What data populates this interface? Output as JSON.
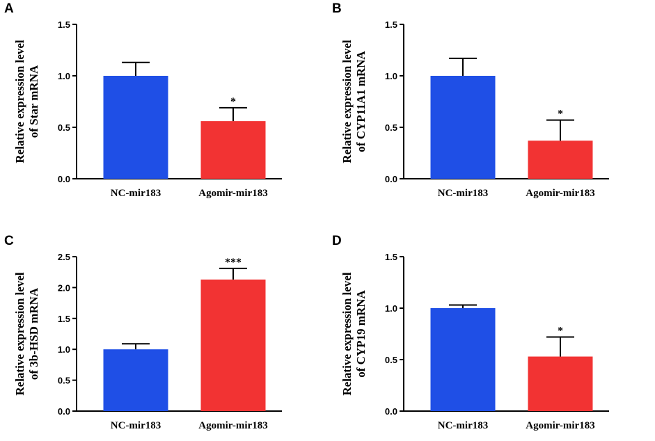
{
  "colors": {
    "nc": "#1f4fe6",
    "agomir": "#f23333",
    "axis": "#000000"
  },
  "chart_data": [
    {
      "panel_label": "A",
      "type": "bar",
      "ylabel_line1": "Relative expression level",
      "ylabel_line2": "of Star mRNA",
      "categories": [
        "NC-mir183",
        "Agomir-mir183"
      ],
      "values": [
        1.0,
        0.56
      ],
      "errors": [
        0.13,
        0.13
      ],
      "significance": [
        "",
        "*"
      ],
      "ylim": [
        0,
        1.5
      ],
      "yticks": [
        "0.0",
        "0.5",
        "1.0",
        "1.5"
      ]
    },
    {
      "panel_label": "B",
      "type": "bar",
      "ylabel_line1": "Relative expression level",
      "ylabel_line2": "of CYP11A1 mRNA",
      "categories": [
        "NC-mir183",
        "Agomir-mir183"
      ],
      "values": [
        1.0,
        0.37
      ],
      "errors": [
        0.17,
        0.2
      ],
      "significance": [
        "",
        "*"
      ],
      "ylim": [
        0,
        1.5
      ],
      "yticks": [
        "0.0",
        "0.5",
        "1.0",
        "1.5"
      ]
    },
    {
      "panel_label": "C",
      "type": "bar",
      "ylabel_line1": "Relative expression level",
      "ylabel_line2": "of 3b-HSD mRNA",
      "categories": [
        "NC-mir183",
        "Agomir-mir183"
      ],
      "values": [
        1.0,
        2.13
      ],
      "errors": [
        0.09,
        0.18
      ],
      "significance": [
        "",
        "***"
      ],
      "ylim": [
        0,
        2.5
      ],
      "yticks": [
        "0.0",
        "0.5",
        "1.0",
        "1.5",
        "2.0",
        "2.5"
      ]
    },
    {
      "panel_label": "D",
      "type": "bar",
      "ylabel_line1": "Relative expression level",
      "ylabel_line2": "of CYP19 mRNA",
      "categories": [
        "NC-mir183",
        "Agomir-mir183"
      ],
      "values": [
        1.0,
        0.53
      ],
      "errors": [
        0.03,
        0.19
      ],
      "significance": [
        "",
        "*"
      ],
      "ylim": [
        0,
        1.5
      ],
      "yticks": [
        "0.0",
        "0.5",
        "1.0",
        "1.5"
      ]
    }
  ]
}
